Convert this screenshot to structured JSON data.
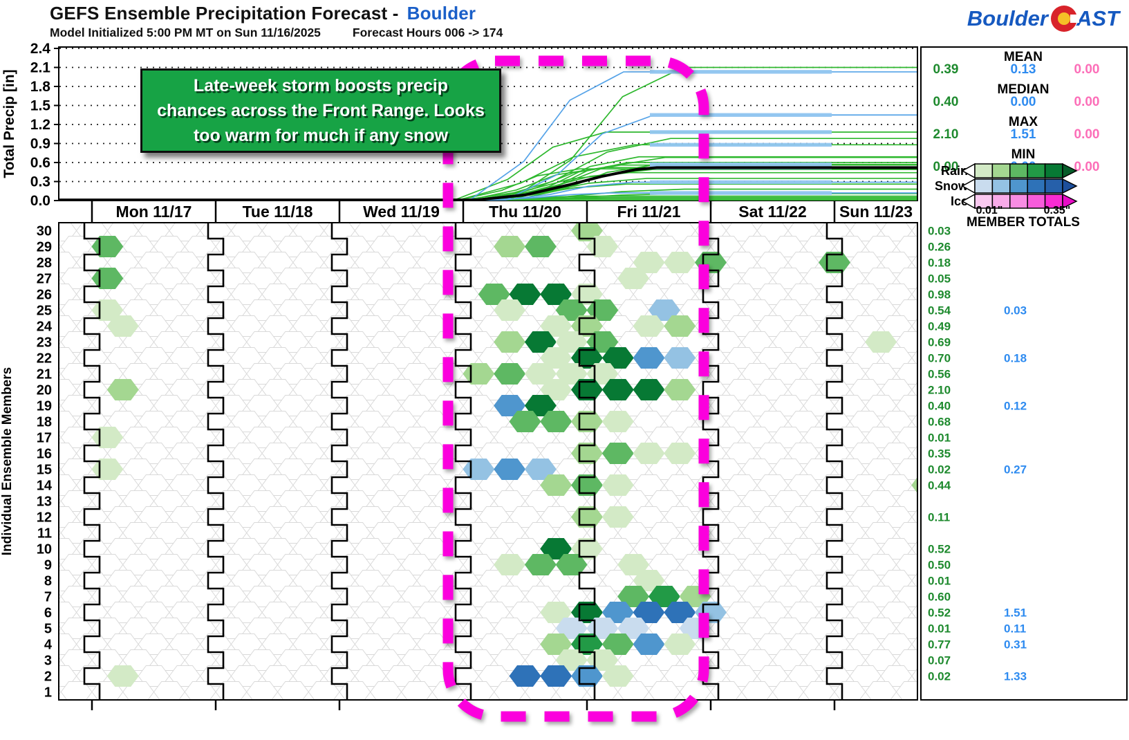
{
  "header": {
    "title": "GEFS Ensemble Precipitation Forecast -",
    "location": "Boulder",
    "init_text": "Model Initialized 5:00 PM MT on Sun 11/16/2025",
    "hours_text": "Forecast Hours 006 -> 174"
  },
  "logo": {
    "part1": "Boulder",
    "part2": "AST"
  },
  "annotation": {
    "lines": [
      "Late-week storm boosts precip",
      "chances across the Front Range. Looks",
      "too warm for much if any snow"
    ],
    "bg_color": "#17a345"
  },
  "top_chart": {
    "ylabel": "Total Precip [in]",
    "yticks": [
      "0.0",
      "0.3",
      "0.6",
      "0.9",
      "1.2",
      "1.5",
      "1.8",
      "2.1",
      "2.4"
    ],
    "ymax": 2.4
  },
  "bottom_chart": {
    "ylabel": "Individual Ensemble Members"
  },
  "days": [
    "Mon 11/17",
    "Tue 11/18",
    "Wed 11/19",
    "Thu 11/20",
    "Fri 11/21",
    "Sat 11/22",
    "Sun 11/23"
  ],
  "stats": {
    "rows": [
      {
        "label": "MEAN",
        "rain": "0.39",
        "snow": "0.13",
        "ice": "0.00"
      },
      {
        "label": "MEDIAN",
        "rain": "0.40",
        "snow": "0.00",
        "ice": "0.00"
      },
      {
        "label": "MAX",
        "rain": "2.10",
        "snow": "1.51",
        "ice": "0.00"
      },
      {
        "label": "MIN",
        "rain": "0.00",
        "snow": "0.00",
        "ice": "0.00"
      }
    ]
  },
  "legend": {
    "rows": [
      "Rain",
      "Snow",
      "Ice"
    ],
    "min_label": "0.01\"",
    "max_label": "0.35\"",
    "totals_header": "MEMBER TOTALS"
  },
  "colors": {
    "stat_green": "#1e8a2e",
    "stat_blue": "#2e8bf0",
    "stat_pink": "#fc6eb8",
    "line_green": "#2eb82e",
    "line_blue": "#55a3e8",
    "line_overlay": "#93c7f1",
    "magenta": "#fb00dd",
    "title_blue": "#1a5fc8",
    "rain_palette": [
      "#d3eac6",
      "#a4d791",
      "#5eb863",
      "#229a46",
      "#077934"
    ],
    "rain_head": "#065c29",
    "snow_palette": [
      "#c9dcee",
      "#94c2e3",
      "#4f96ce",
      "#2e72b8",
      "#2660aa"
    ],
    "snow_head": "#1d4f9c",
    "ice_palette": [
      "#fac9f0",
      "#f9abe9",
      "#f88de3",
      "#f75cdb",
      "#f92bd3"
    ],
    "ice_head": "#e80cc6"
  },
  "chart_data": {
    "type": "line+hex-heatmap",
    "description": "Cumulative precipitation per GEFS ensemble member (top line chart, inches) and 6-hourly precip type/amount hexagon heatmap per member (bottom). Cells: [dayIndex 1=Mon..7=Sun, slot 0-3, color g1-g5 rain | b1-b5 snow].",
    "x_days": [
      "Mon 11/17",
      "Tue 11/18",
      "Wed 11/19",
      "Thu 11/20",
      "Fri 11/21",
      "Sat 11/22",
      "Sun 11/23"
    ],
    "ylim": [
      0,
      2.4
    ],
    "mean_total": 0.52,
    "highlight_days": [
      "Thu 11/20",
      "Fri 11/21"
    ],
    "members": [
      {
        "id": 30,
        "rain": 0.03,
        "snow": 0,
        "cells": [
          [
            4,
            3,
            "g2"
          ]
        ]
      },
      {
        "id": 29,
        "rain": 0.26,
        "snow": 0,
        "cells": [
          [
            1,
            0,
            "g3"
          ],
          [
            4,
            1,
            "g2"
          ],
          [
            4,
            2,
            "g3"
          ],
          [
            5,
            0,
            "g1"
          ]
        ]
      },
      {
        "id": 28,
        "rain": 0.18,
        "snow": 0,
        "cells": [
          [
            5,
            1,
            "g1"
          ],
          [
            5,
            2,
            "g1"
          ],
          [
            5,
            3,
            "g3"
          ],
          [
            6,
            3,
            "g3"
          ]
        ]
      },
      {
        "id": 27,
        "rain": 0.05,
        "snow": 0,
        "cells": [
          [
            1,
            0,
            "g3"
          ],
          [
            5,
            1,
            "g1"
          ]
        ]
      },
      {
        "id": 26,
        "rain": 0.98,
        "snow": 0,
        "cells": [
          [
            4,
            0,
            "g3"
          ],
          [
            4,
            1,
            "g5"
          ],
          [
            4,
            2,
            "g5"
          ],
          [
            4,
            3,
            "g1"
          ]
        ]
      },
      {
        "id": 25,
        "rain": 0.54,
        "snow": 0.03,
        "cells": [
          [
            1,
            0,
            "g1"
          ],
          [
            4,
            1,
            "g1"
          ],
          [
            4,
            3,
            "g3"
          ],
          [
            5,
            0,
            "g3"
          ],
          [
            5,
            2,
            "b2"
          ]
        ]
      },
      {
        "id": 24,
        "rain": 0.49,
        "snow": 0,
        "cells": [
          [
            1,
            0,
            "g1"
          ],
          [
            4,
            2,
            "g1"
          ],
          [
            4,
            3,
            "g2"
          ],
          [
            5,
            1,
            "g1"
          ],
          [
            5,
            2,
            "g2"
          ]
        ]
      },
      {
        "id": 23,
        "rain": 0.69,
        "snow": 0,
        "cells": [
          [
            4,
            1,
            "g2"
          ],
          [
            4,
            2,
            "g5"
          ],
          [
            4,
            3,
            "g1"
          ],
          [
            5,
            0,
            "g3"
          ],
          [
            7,
            1,
            "g1"
          ]
        ]
      },
      {
        "id": 22,
        "rain": 0.7,
        "snow": 0.18,
        "cells": [
          [
            4,
            2,
            "g1"
          ],
          [
            4,
            3,
            "g5"
          ],
          [
            5,
            0,
            "g5"
          ],
          [
            5,
            1,
            "b3"
          ],
          [
            5,
            2,
            "b2"
          ]
        ]
      },
      {
        "id": 21,
        "rain": 0.56,
        "snow": 0,
        "cells": [
          [
            4,
            0,
            "g2"
          ],
          [
            4,
            1,
            "g3"
          ],
          [
            4,
            2,
            "g1"
          ],
          [
            4,
            3,
            "g1"
          ],
          [
            5,
            0,
            "g1"
          ]
        ]
      },
      {
        "id": 20,
        "rain": 2.1,
        "snow": 0,
        "cells": [
          [
            1,
            0,
            "g2"
          ],
          [
            4,
            2,
            "g1"
          ],
          [
            4,
            3,
            "g5"
          ],
          [
            5,
            0,
            "g5"
          ],
          [
            5,
            1,
            "g5"
          ],
          [
            5,
            2,
            "g2"
          ]
        ]
      },
      {
        "id": 19,
        "rain": 0.4,
        "snow": 0.12,
        "cells": [
          [
            4,
            1,
            "b3"
          ],
          [
            4,
            2,
            "g5"
          ]
        ]
      },
      {
        "id": 18,
        "rain": 0.68,
        "snow": 0,
        "cells": [
          [
            4,
            1,
            "g3"
          ],
          [
            4,
            2,
            "g3"
          ],
          [
            4,
            3,
            "g2"
          ],
          [
            5,
            0,
            "g1"
          ]
        ]
      },
      {
        "id": 17,
        "rain": 0.01,
        "snow": 0,
        "cells": [
          [
            1,
            0,
            "g1"
          ]
        ]
      },
      {
        "id": 16,
        "rain": 0.35,
        "snow": 0,
        "cells": [
          [
            4,
            3,
            "g2"
          ],
          [
            5,
            0,
            "g3"
          ],
          [
            5,
            1,
            "g1"
          ],
          [
            5,
            2,
            "g1"
          ]
        ]
      },
      {
        "id": 15,
        "rain": 0.02,
        "snow": 0.27,
        "cells": [
          [
            1,
            0,
            "g1"
          ],
          [
            4,
            0,
            "b2"
          ],
          [
            4,
            1,
            "b3"
          ],
          [
            4,
            2,
            "b2"
          ]
        ]
      },
      {
        "id": 14,
        "rain": 0.44,
        "snow": 0,
        "cells": [
          [
            4,
            2,
            "g2"
          ],
          [
            4,
            3,
            "g3"
          ],
          [
            5,
            0,
            "g1"
          ],
          [
            7,
            2,
            "g2"
          ]
        ]
      },
      {
        "id": 13,
        "rain": null,
        "snow": 0,
        "cells": []
      },
      {
        "id": 12,
        "rain": 0.11,
        "snow": 0,
        "cells": [
          [
            4,
            3,
            "g2"
          ],
          [
            5,
            0,
            "g1"
          ]
        ]
      },
      {
        "id": 11,
        "rain": null,
        "snow": 0,
        "cells": []
      },
      {
        "id": 10,
        "rain": 0.52,
        "snow": 0,
        "cells": [
          [
            4,
            2,
            "g5"
          ],
          [
            4,
            3,
            "g1"
          ]
        ]
      },
      {
        "id": 9,
        "rain": 0.5,
        "snow": 0,
        "cells": [
          [
            4,
            1,
            "g1"
          ],
          [
            4,
            2,
            "g3"
          ],
          [
            4,
            3,
            "g3"
          ],
          [
            5,
            1,
            "g1"
          ]
        ]
      },
      {
        "id": 8,
        "rain": 0.01,
        "snow": 0,
        "cells": [
          [
            5,
            1,
            "g1"
          ]
        ]
      },
      {
        "id": 7,
        "rain": 0.6,
        "snow": 0,
        "cells": [
          [
            5,
            1,
            "g3"
          ],
          [
            5,
            2,
            "g4"
          ],
          [
            5,
            3,
            "g2"
          ]
        ]
      },
      {
        "id": 6,
        "rain": 0.52,
        "snow": 1.51,
        "cells": [
          [
            4,
            2,
            "g1"
          ],
          [
            4,
            3,
            "g5"
          ],
          [
            5,
            0,
            "b3"
          ],
          [
            5,
            1,
            "b4"
          ],
          [
            5,
            2,
            "b4"
          ],
          [
            5,
            3,
            "b2"
          ]
        ]
      },
      {
        "id": 5,
        "rain": 0.01,
        "snow": 0.11,
        "cells": [
          [
            4,
            3,
            "b1"
          ],
          [
            5,
            0,
            "b1"
          ],
          [
            5,
            1,
            "b1"
          ],
          [
            5,
            3,
            "b1"
          ]
        ]
      },
      {
        "id": 4,
        "rain": 0.77,
        "snow": 0.31,
        "cells": [
          [
            4,
            2,
            "g2"
          ],
          [
            4,
            3,
            "g4"
          ],
          [
            5,
            0,
            "g3"
          ],
          [
            5,
            1,
            "b3"
          ],
          [
            5,
            2,
            "g1"
          ]
        ]
      },
      {
        "id": 3,
        "rain": 0.07,
        "snow": 0,
        "cells": [
          [
            4,
            3,
            "g1"
          ],
          [
            5,
            0,
            "g1"
          ]
        ]
      },
      {
        "id": 2,
        "rain": 0.02,
        "snow": 1.33,
        "cells": [
          [
            1,
            0,
            "g1"
          ],
          [
            4,
            1,
            "b4"
          ],
          [
            4,
            2,
            "b4"
          ],
          [
            4,
            3,
            "b3"
          ],
          [
            5,
            0,
            "g1"
          ]
        ]
      },
      {
        "id": 1,
        "rain": null,
        "snow": 0,
        "cells": []
      }
    ]
  }
}
